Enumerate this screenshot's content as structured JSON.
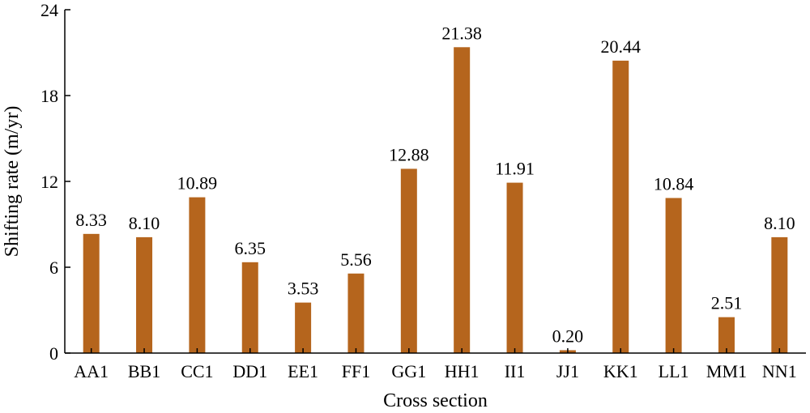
{
  "chart_data": {
    "type": "bar",
    "title": "",
    "xlabel": "Cross section",
    "ylabel": "Shifting rate (m/yr)",
    "categories": [
      "AA1",
      "BB1",
      "CC1",
      "DD1",
      "EE1",
      "FF1",
      "GG1",
      "HH1",
      "II1",
      "JJ1",
      "KK1",
      "LL1",
      "MM1",
      "NN1"
    ],
    "values": [
      8.33,
      8.1,
      10.89,
      6.35,
      3.53,
      5.56,
      12.88,
      21.38,
      11.91,
      0.2,
      20.44,
      10.84,
      2.51,
      8.1
    ],
    "data_labels": [
      "8.33",
      "8.10",
      "10.89",
      "6.35",
      "3.53",
      "5.56",
      "12.88",
      "21.38",
      "11.91",
      "0.20",
      "20.44",
      "10.84",
      "2.51",
      "8.10"
    ],
    "ylim": [
      0,
      24
    ],
    "yticks": [
      0,
      6,
      12,
      18,
      24
    ],
    "grid": false,
    "legend": "none",
    "bar_color": "#b5651d"
  }
}
